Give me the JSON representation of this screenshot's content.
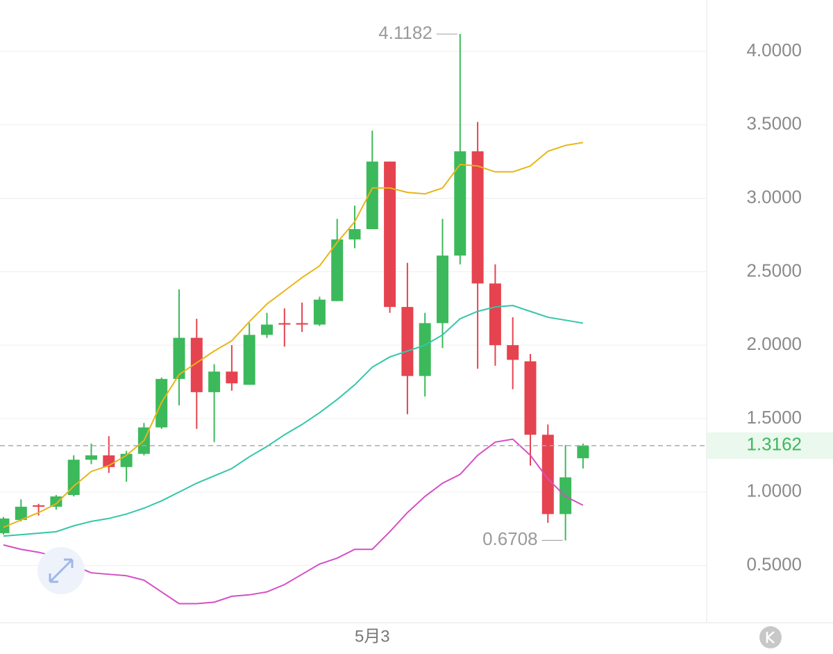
{
  "chart_data": {
    "type": "candlestick",
    "categories": [
      null,
      null,
      null,
      null,
      null,
      null,
      null,
      null,
      null,
      null,
      null,
      null,
      null,
      null,
      null,
      null,
      null,
      null,
      null,
      null,
      null,
      "5月3",
      null,
      null,
      null,
      null,
      null,
      null,
      null,
      null,
      null,
      null,
      null,
      null
    ],
    "open": [
      0.72,
      0.81,
      0.91,
      0.9,
      0.98,
      1.22,
      1.25,
      1.17,
      1.26,
      1.44,
      1.77,
      2.05,
      1.68,
      1.82,
      1.73,
      2.07,
      2.15,
      2.15,
      2.14,
      2.3,
      2.72,
      2.79,
      3.25,
      2.26,
      1.79,
      2.15,
      2.61,
      3.32,
      2.42,
      2.0,
      1.89,
      1.39,
      0.85,
      1.23
    ],
    "high": [
      0.83,
      0.95,
      0.92,
      0.98,
      1.25,
      1.33,
      1.38,
      1.28,
      1.47,
      1.78,
      2.38,
      2.18,
      1.87,
      2.0,
      2.15,
      2.22,
      2.25,
      2.29,
      2.33,
      2.86,
      2.95,
      3.46,
      3.25,
      2.56,
      2.22,
      2.86,
      4.1182,
      3.52,
      2.55,
      2.19,
      1.94,
      1.46,
      1.32,
      1.33
    ],
    "low": [
      0.71,
      0.8,
      0.84,
      0.88,
      0.97,
      1.19,
      1.13,
      1.07,
      1.25,
      1.43,
      1.59,
      1.43,
      1.34,
      1.69,
      1.73,
      2.05,
      1.99,
      2.09,
      2.13,
      2.3,
      2.66,
      2.79,
      2.22,
      1.53,
      1.65,
      1.98,
      2.55,
      1.84,
      1.86,
      1.7,
      1.18,
      0.79,
      0.6708,
      1.16
    ],
    "close": [
      0.82,
      0.9,
      0.9,
      0.97,
      1.22,
      1.25,
      1.17,
      1.26,
      1.44,
      1.77,
      2.05,
      1.68,
      1.82,
      1.74,
      2.07,
      2.14,
      2.14,
      2.14,
      2.31,
      2.72,
      2.79,
      3.25,
      2.26,
      1.79,
      2.15,
      2.61,
      3.32,
      2.42,
      2.0,
      1.9,
      1.39,
      0.85,
      1.1,
      1.3162
    ],
    "up_color": "#3cb95b",
    "down_color": "#e5434f",
    "lines": [
      {
        "color": "#e8b517",
        "values": [
          0.76,
          0.81,
          0.86,
          0.92,
          1.04,
          1.14,
          1.18,
          1.25,
          1.35,
          1.61,
          1.8,
          1.88,
          1.96,
          2.03,
          2.16,
          2.28,
          2.37,
          2.46,
          2.54,
          2.7,
          2.84,
          3.07,
          3.07,
          3.04,
          3.03,
          3.07,
          3.23,
          3.22,
          3.18,
          3.18,
          3.22,
          3.32,
          3.36,
          3.38
        ]
      },
      {
        "color": "#33c6a8",
        "values": [
          0.7,
          0.71,
          0.72,
          0.73,
          0.77,
          0.8,
          0.82,
          0.85,
          0.89,
          0.94,
          1.0,
          1.06,
          1.11,
          1.16,
          1.24,
          1.31,
          1.39,
          1.46,
          1.54,
          1.63,
          1.73,
          1.85,
          1.92,
          1.96,
          2.0,
          2.07,
          2.18,
          2.23,
          2.26,
          2.27,
          2.23,
          2.19,
          2.17,
          2.15
        ]
      },
      {
        "color": "#d44fc5",
        "values": [
          0.64,
          0.61,
          0.59,
          0.56,
          0.5,
          0.45,
          0.44,
          0.43,
          0.4,
          0.32,
          0.24,
          0.24,
          0.25,
          0.29,
          0.3,
          0.32,
          0.37,
          0.44,
          0.51,
          0.55,
          0.61,
          0.61,
          0.73,
          0.86,
          0.97,
          1.06,
          1.12,
          1.25,
          1.34,
          1.36,
          1.25,
          1.09,
          0.97,
          0.91
        ]
      }
    ],
    "ylim": [
      0.11,
      4.35
    ],
    "yticks": [
      {
        "value": 0.5,
        "label": "0.5000"
      },
      {
        "value": 1,
        "label": "1.0000"
      },
      {
        "value": 1.5,
        "label": "1.5000"
      },
      {
        "value": 2,
        "label": "2.0000"
      },
      {
        "value": 2.5,
        "label": "2.5000"
      },
      {
        "value": 3,
        "label": "3.0000"
      },
      {
        "value": 3.5,
        "label": "3.5000"
      },
      {
        "value": 4,
        "label": "4.0000"
      }
    ],
    "grid": true
  }
}
